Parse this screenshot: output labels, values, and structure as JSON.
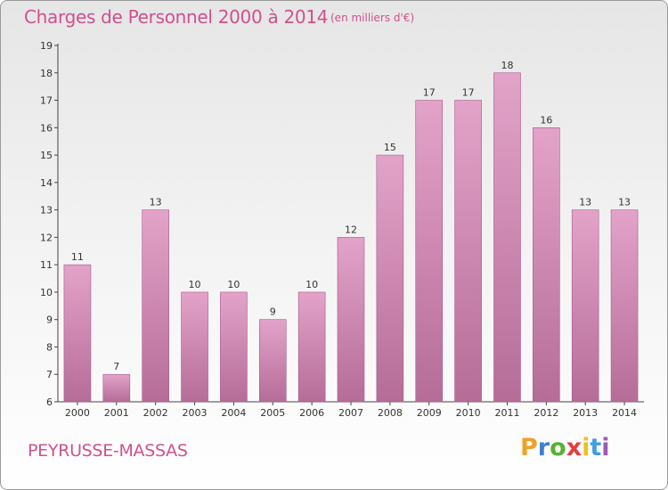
{
  "header": {
    "title": "Charges de Personnel 2000 à 2014",
    "subtitle": "(en milliers d'€)"
  },
  "footer": {
    "commune": "PEYRUSSE-MASSAS",
    "logo": {
      "letters": [
        "P",
        "r",
        "o",
        "x",
        "i",
        "t",
        "i"
      ],
      "colors": [
        "#f0a028",
        "#3f7fd0",
        "#58b030",
        "#e63c3c",
        "#f0c020",
        "#3f9fe0",
        "#9c5ab8"
      ]
    }
  },
  "chart_data": {
    "type": "bar",
    "categories": [
      "2000",
      "2001",
      "2002",
      "2003",
      "2004",
      "2005",
      "2006",
      "2007",
      "2008",
      "2009",
      "2010",
      "2011",
      "2012",
      "2013",
      "2014"
    ],
    "values": [
      11,
      7,
      13,
      10,
      10,
      9,
      10,
      12,
      15,
      17,
      17,
      18,
      16,
      13,
      13
    ],
    "ylim": [
      6,
      19
    ],
    "yticks": [
      6,
      7,
      8,
      9,
      10,
      11,
      12,
      13,
      14,
      15,
      16,
      17,
      18,
      19
    ],
    "bar_color": "#e3a3c9",
    "bar_color_dark": "#b56d98",
    "grid": false
  }
}
